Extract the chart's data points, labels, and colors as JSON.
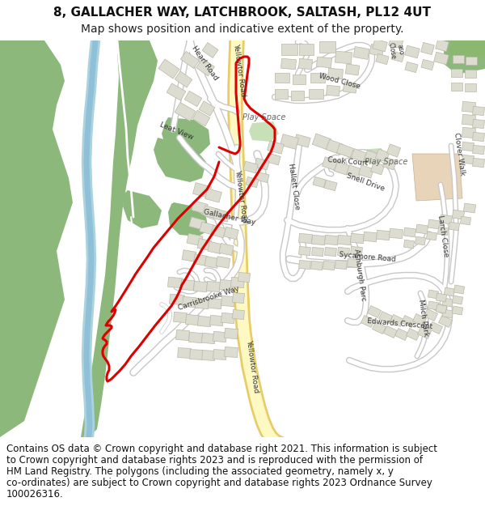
{
  "title": "8, GALLACHER WAY, LATCHBROOK, SALTASH, PL12 4UT",
  "subtitle": "Map shows position and indicative extent of the property.",
  "footer_lines": [
    "Contains OS data © Crown copyright and database right 2021. This information is subject",
    "to Crown copyright and database rights 2023 and is reproduced with the permission of",
    "HM Land Registry. The polygons (including the associated geometry, namely x, y",
    "co-ordinates) are subject to Crown copyright and database rights 2023 Ordnance Survey",
    "100026316."
  ],
  "map_bg": "#f2efe9",
  "green_dark": "#8db87c",
  "green_light": "#c9e4b8",
  "blue_river": "#aad3df",
  "road_yellow_fill": "#fef9c3",
  "road_yellow_border": "#e8cc6a",
  "road_white_fill": "#ffffff",
  "road_white_border": "#c8c8c8",
  "building_fill": "#dcdcd0",
  "building_edge": "#b8b8a8",
  "red_line": "#dd0000",
  "brown_fill": "#e8d4b8",
  "brown_edge": "#c8b090",
  "text_dark": "#333333",
  "header_bg": "#ffffff",
  "title_fontsize": 11,
  "subtitle_fontsize": 10,
  "footer_fontsize": 8.5
}
